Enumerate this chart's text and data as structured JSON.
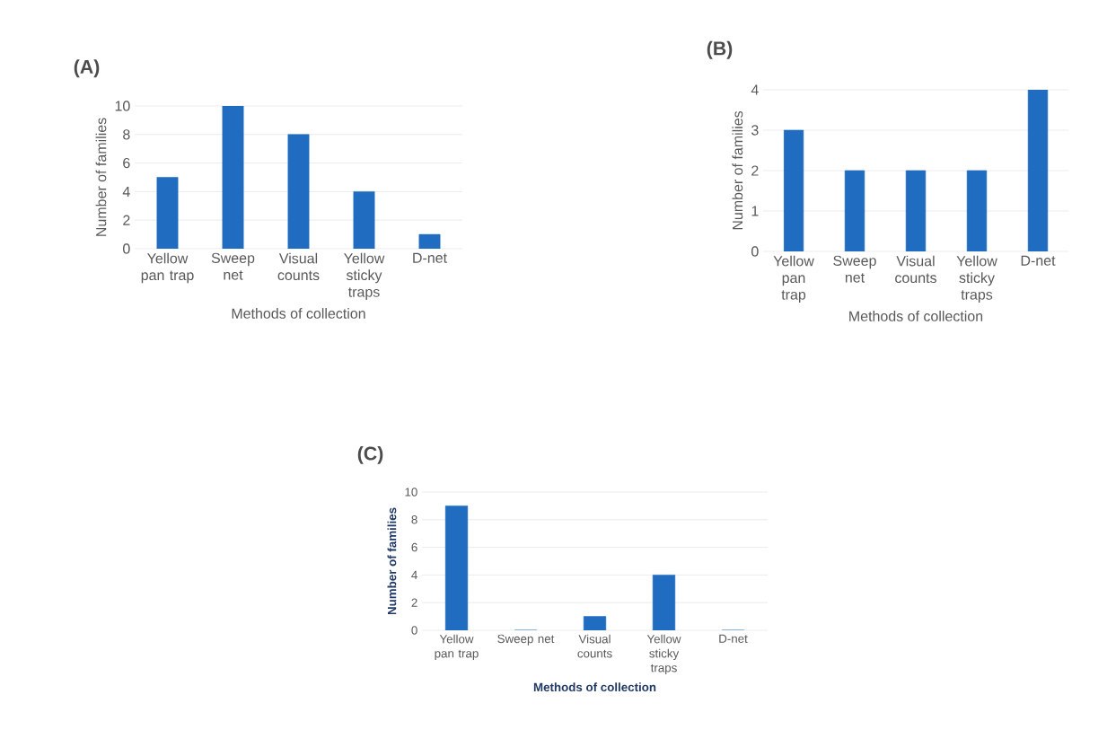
{
  "chart_data": [
    {
      "type": "bar",
      "title": "(A)",
      "xlabel": "Methods of collection",
      "ylabel": "Number of families",
      "categories": [
        "Yellow pan trap",
        "Sweep net",
        "Visual counts",
        "Yellow sticky traps",
        "D-net"
      ],
      "values": [
        5,
        10,
        8,
        4,
        1
      ],
      "color": "#1f6cc0",
      "ylim": [
        0,
        10
      ],
      "yticks": [
        0,
        2,
        4,
        6,
        8,
        10
      ],
      "grid": "y"
    },
    {
      "type": "bar",
      "title": "(B)",
      "xlabel": "Methods of collection",
      "ylabel": "Number of families",
      "categories": [
        "Yellow pan trap",
        "Sweep net",
        "Visual counts",
        "Yellow sticky traps",
        "D-net"
      ],
      "values": [
        3,
        2,
        2,
        2,
        4
      ],
      "color": "#1f6cc0",
      "ylim": [
        0,
        4
      ],
      "yticks": [
        0,
        1,
        2,
        3,
        4
      ],
      "grid": "y"
    },
    {
      "type": "bar",
      "title": "(C)",
      "xlabel": "Methods of collection",
      "ylabel": "Number of families",
      "categories": [
        "Yellow pan trap",
        "Sweep net",
        "Visual counts",
        "Yellow sticky traps",
        "D-net"
      ],
      "values": [
        9,
        0,
        1,
        4,
        0
      ],
      "color": "#1f6cc0",
      "ylim": [
        0,
        10
      ],
      "yticks": [
        0,
        2,
        4,
        6,
        8,
        10
      ],
      "grid": "y"
    }
  ]
}
